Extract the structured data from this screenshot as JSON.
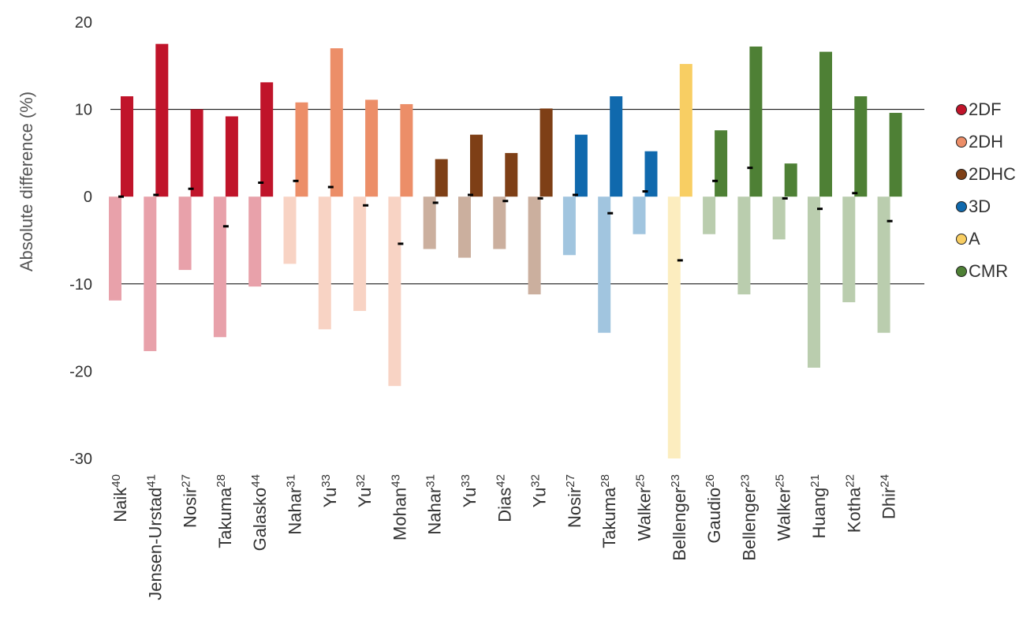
{
  "chart_data": {
    "type": "bar",
    "ylabel": "Absolute difference (%)",
    "ylim": [
      -30,
      20
    ],
    "yticks": [
      20,
      10,
      0,
      -10,
      -20,
      -30
    ],
    "grid_lines_at": [
      10,
      -10
    ],
    "categories": [
      {
        "name": "Naik",
        "ref": "40"
      },
      {
        "name": "Jensen-Urstad",
        "ref": "41"
      },
      {
        "name": "Nosir",
        "ref": "27"
      },
      {
        "name": "Takuma",
        "ref": "28"
      },
      {
        "name": "Galasko",
        "ref": "44"
      },
      {
        "name": "Nahar",
        "ref": "31"
      },
      {
        "name": "Yu",
        "ref": "33"
      },
      {
        "name": "Yu",
        "ref": "32"
      },
      {
        "name": "Mohan",
        "ref": "43"
      },
      {
        "name": "Nahar",
        "ref": "31"
      },
      {
        "name": "Yu",
        "ref": "33"
      },
      {
        "name": "Dias",
        "ref": "42"
      },
      {
        "name": "Yu",
        "ref": "32"
      },
      {
        "name": "Nosir",
        "ref": "27"
      },
      {
        "name": "Takuma",
        "ref": "28"
      },
      {
        "name": "Walker",
        "ref": "25"
      },
      {
        "name": "Bellenger",
        "ref": "23"
      },
      {
        "name": "Gaudio",
        "ref": "26"
      },
      {
        "name": "Bellenger",
        "ref": "23"
      },
      {
        "name": "Walker",
        "ref": "25"
      },
      {
        "name": "Huang",
        "ref": "21"
      },
      {
        "name": "Kotha",
        "ref": "22"
      },
      {
        "name": "Dhir",
        "ref": "24"
      }
    ],
    "groups": [
      "2DF",
      "2DF",
      "2DF",
      "2DF",
      "2DF",
      "2DH",
      "2DH",
      "2DH",
      "2DH",
      "2DHC",
      "2DHC",
      "2DHC",
      "2DHC",
      "3D",
      "3D",
      "3D",
      "A",
      "CMR",
      "CMR",
      "CMR",
      "CMR",
      "CMR",
      "CMR"
    ],
    "upper": [
      11.5,
      17.5,
      10.0,
      9.2,
      13.1,
      10.8,
      17.0,
      11.1,
      10.6,
      4.3,
      7.1,
      5.0,
      10.1,
      7.1,
      11.5,
      5.2,
      15.2,
      7.6,
      17.2,
      3.8,
      16.6,
      11.5,
      9.6
    ],
    "lower": [
      -11.9,
      -17.7,
      -8.4,
      -16.1,
      -10.3,
      -7.7,
      -15.2,
      -13.1,
      -21.7,
      -6.0,
      -7.0,
      -6.0,
      -11.2,
      -6.7,
      -15.6,
      -4.3,
      -30.0,
      -4.3,
      -11.2,
      -4.9,
      -19.6,
      -12.1,
      -15.6
    ],
    "mean": [
      0.0,
      0.2,
      0.9,
      -3.4,
      1.6,
      1.8,
      1.1,
      -1.0,
      -5.4,
      -0.7,
      0.2,
      -0.5,
      -0.2,
      0.2,
      -1.9,
      0.6,
      -7.3,
      1.8,
      3.3,
      -0.2,
      -1.4,
      0.4,
      -2.8
    ],
    "legend": [
      {
        "name": "2DF",
        "color": "#C0142A",
        "light": "#E8A1AA"
      },
      {
        "name": "2DH",
        "color": "#EC8E68",
        "light": "#F8D3C4"
      },
      {
        "name": "2DHC",
        "color": "#7E3F16",
        "light": "#CBAF9E"
      },
      {
        "name": "3D",
        "color": "#1069AD",
        "light": "#A1C5DF"
      },
      {
        "name": "A",
        "color": "#F8CE63",
        "light": "#FCEDBF"
      },
      {
        "name": "CMR",
        "color": "#4E8035",
        "light": "#BACDAE"
      }
    ],
    "legend_position": "right"
  }
}
